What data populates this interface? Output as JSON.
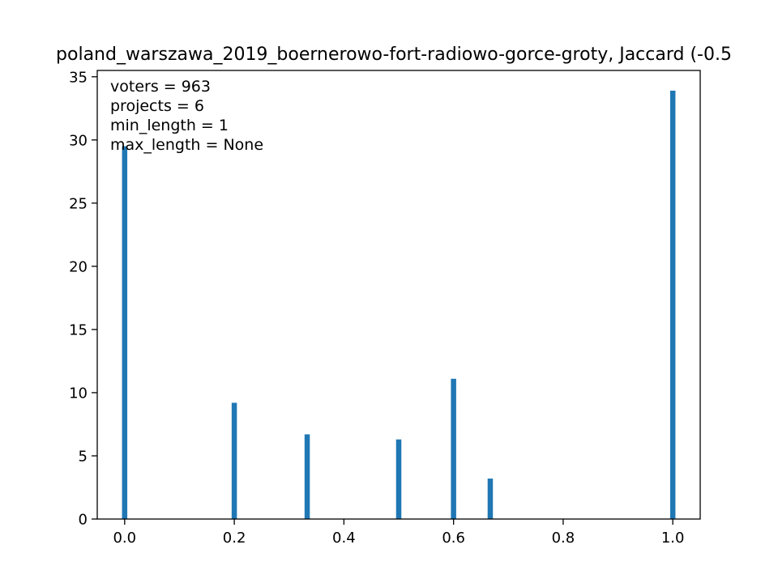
{
  "chart_data": {
    "type": "bar",
    "title": "poland_warszawa_2019_boernerowo-fort-radiowo-gorce-groty, Jaccard (-0.5",
    "xlabel": "",
    "ylabel": "",
    "xlim": [
      -0.05,
      1.05
    ],
    "ylim": [
      0,
      35.5
    ],
    "x_ticks": [
      0.0,
      0.2,
      0.4,
      0.6,
      0.8,
      1.0
    ],
    "x_tick_labels": [
      "0.0",
      "0.2",
      "0.4",
      "0.6",
      "0.8",
      "1.0"
    ],
    "y_ticks": [
      0,
      5,
      10,
      15,
      20,
      25,
      30,
      35
    ],
    "y_tick_labels": [
      "0",
      "5",
      "10",
      "15",
      "20",
      "25",
      "30",
      "35"
    ],
    "bar_color": "#1f77b4",
    "bars": [
      {
        "x": 0.0,
        "value": 29.5
      },
      {
        "x": 0.2,
        "value": 9.2
      },
      {
        "x": 0.333,
        "value": 6.7
      },
      {
        "x": 0.5,
        "value": 6.3
      },
      {
        "x": 0.6,
        "value": 11.1
      },
      {
        "x": 0.667,
        "value": 3.2
      },
      {
        "x": 1.0,
        "value": 33.9
      }
    ],
    "annotations": [
      "voters = 963",
      "projects = 6",
      "min_length = 1",
      "max_length = None"
    ],
    "grid": false,
    "legend": "none"
  }
}
